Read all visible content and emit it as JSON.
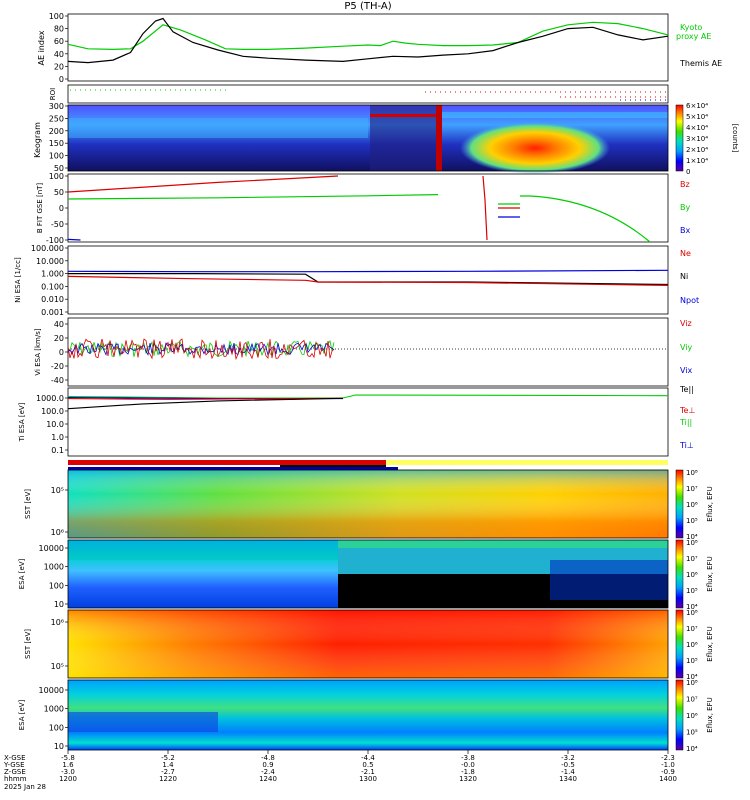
{
  "title": "P5 (TH-A)",
  "colors": {
    "green": "#00cc00",
    "red": "#dd0000",
    "blue": "#0000dd",
    "black": "#000000"
  },
  "chart_data": [
    {
      "id": "ae",
      "type": "line",
      "ylabel": "AE index",
      "ylim": [
        0,
        100
      ],
      "yticks": [
        "0",
        "20",
        "40",
        "60",
        "80",
        "100"
      ],
      "legend": [
        "Kyoto",
        "proxy AE",
        "Themis AE"
      ],
      "series": [
        {
          "name": "Kyoto proxy AE",
          "color": "#00cc00",
          "x": [
            0,
            8,
            18,
            25,
            30,
            38,
            45,
            55,
            63,
            70,
            80,
            95,
            110,
            120,
            125,
            130,
            135,
            140,
            150,
            160,
            170,
            180,
            190,
            200,
            210,
            220,
            230,
            240
          ],
          "values": [
            55,
            48,
            47,
            48,
            60,
            86,
            78,
            62,
            48,
            47,
            47,
            49,
            52,
            54,
            53,
            60,
            57,
            55,
            53,
            53,
            54,
            58,
            76,
            86,
            90,
            88,
            80,
            70
          ]
        },
        {
          "name": "Themis AE",
          "color": "#000000",
          "x": [
            0,
            8,
            18,
            25,
            30,
            35,
            38,
            42,
            50,
            60,
            70,
            80,
            95,
            110,
            120,
            130,
            140,
            150,
            160,
            170,
            180,
            190,
            200,
            210,
            220,
            230,
            240
          ],
          "values": [
            28,
            26,
            30,
            42,
            72,
            92,
            96,
            75,
            58,
            46,
            36,
            33,
            30,
            28,
            32,
            36,
            35,
            38,
            40,
            45,
            58,
            68,
            80,
            82,
            70,
            62,
            68
          ]
        }
      ]
    },
    {
      "id": "roi",
      "type": "scatter",
      "ylabel": "ROI"
    },
    {
      "id": "keogram",
      "type": "heatmap",
      "ylabel": "Keogram",
      "yticks": [
        "50",
        "100",
        "150",
        "200",
        "250",
        "300"
      ],
      "colorbar": {
        "ticks": [
          "0",
          "1×10⁴",
          "2×10⁴",
          "3×10⁴",
          "4×10⁴",
          "5×10⁴",
          "6×10⁴"
        ],
        "label": "[counts]"
      }
    },
    {
      "id": "bfield",
      "type": "line",
      "ylabel": "B FIT GSE [nT]",
      "ylim": [
        -100,
        100
      ],
      "yticks": [
        "-100",
        "-50",
        "0",
        "50",
        "100"
      ],
      "legend": [
        "Bz",
        "By",
        "Bx"
      ],
      "series": [
        {
          "name": "Bz",
          "color": "#dd0000",
          "x": [
            0,
            60,
            108
          ],
          "values": [
            50,
            80,
            100
          ]
        },
        {
          "name": "By",
          "color": "#00cc00",
          "x": [
            0,
            60,
            120,
            148
          ],
          "values": [
            28,
            32,
            38,
            42
          ]
        },
        {
          "name": "Bx",
          "color": "#0000dd",
          "x": [
            0,
            5
          ],
          "values": [
            -98,
            -100
          ]
        }
      ]
    },
    {
      "id": "ni",
      "type": "line",
      "ylabel": "Ni ESA [1/cc]",
      "ylog": true,
      "yticks": [
        "0.001",
        "0.010",
        "0.100",
        "1.000",
        "10.000",
        "100.000"
      ],
      "legend": [
        "Ne",
        "Ni",
        "Npot"
      ],
      "series": [
        {
          "name": "Npot",
          "color": "#0000dd",
          "x": [
            0,
            50,
            100,
            160,
            240
          ],
          "values": [
            1.5,
            1.4,
            1.4,
            1.5,
            1.8
          ]
        },
        {
          "name": "Ni",
          "color": "#000000",
          "x": [
            0,
            50,
            95,
            100,
            160,
            240
          ],
          "values": [
            1.0,
            1.0,
            0.9,
            0.22,
            0.22,
            0.14
          ]
        },
        {
          "name": "Ne",
          "color": "#dd0000",
          "x": [
            0,
            50,
            95,
            100,
            160,
            240
          ],
          "values": [
            0.6,
            0.4,
            0.3,
            0.22,
            0.2,
            0.12
          ]
        }
      ]
    },
    {
      "id": "vi",
      "type": "line",
      "ylabel": "Vi ESA [km/s]",
      "ylim": [
        -50,
        45
      ],
      "yticks": [
        "-40",
        "-20",
        "0",
        "20",
        "40"
      ],
      "legend": [
        "Viz",
        "Viy",
        "Vix"
      ]
    },
    {
      "id": "ti",
      "type": "line",
      "ylabel": "Ti ESA [eV]",
      "ylog": true,
      "yticks": [
        "0.1",
        "1.0",
        "10.0",
        "100.0",
        "1000.0"
      ],
      "legend": [
        "Te||",
        "Te⊥",
        "Ti||",
        "Ti⊥"
      ]
    },
    {
      "id": "sst_e",
      "type": "heatmap",
      "ylabel": "SST [eV]",
      "yticks": [
        "10⁶",
        "10⁵"
      ],
      "colorbar": {
        "ticks": [
          "10⁴",
          "10⁵",
          "10⁶",
          "10⁷",
          "10⁸"
        ],
        "label": "Eflux, EFU"
      }
    },
    {
      "id": "esa_e",
      "type": "heatmap",
      "ylabel": "ESA [eV]",
      "yticks": [
        "10",
        "100",
        "1000",
        "10000"
      ],
      "colorbar": {
        "ticks": [
          "10⁴",
          "10⁵",
          "10⁶",
          "10⁷",
          "10⁸"
        ],
        "label": "Eflux, EFU"
      }
    },
    {
      "id": "sst_i",
      "type": "heatmap",
      "ylabel": "SST [eV]",
      "yticks": [
        "10⁵",
        "10⁶"
      ],
      "colorbar": {
        "ticks": [
          "10⁴",
          "10⁵",
          "10⁶",
          "10⁷",
          "10⁸"
        ],
        "label": "Eflux, EFU"
      }
    },
    {
      "id": "esa_i",
      "type": "heatmap",
      "ylabel": "ESA [eV]",
      "yticks": [
        "10",
        "100",
        "1000",
        "10000"
      ],
      "colorbar": {
        "ticks": [
          "10⁴",
          "10⁵",
          "10⁶",
          "10⁷",
          "10⁸"
        ],
        "label": "Eflux, EFU"
      }
    }
  ],
  "axis_table": {
    "row_labels": [
      "X-GSE",
      "Y-GSE",
      "Z-GSE",
      "hhmm",
      "2025 Jan 28"
    ],
    "columns": [
      [
        "-5.8",
        "1.6",
        "-3.0",
        "1200"
      ],
      [
        "-5.2",
        "1.4",
        "-2.7",
        "1220"
      ],
      [
        "-4.8",
        "0.9",
        "-2.4",
        "1240"
      ],
      [
        "-4.4",
        "0.5",
        "-2.1",
        "1300"
      ],
      [
        "-3.8",
        "-0.0",
        "-1.8",
        "1320"
      ],
      [
        "-3.2",
        "-0.5",
        "-1.4",
        "1340"
      ],
      [
        "-2.3",
        "-1.0",
        "-0.9",
        "1400"
      ]
    ]
  }
}
